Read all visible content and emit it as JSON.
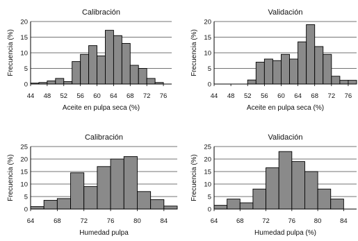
{
  "chart_data": [
    {
      "type": "bar",
      "title": "Calibración",
      "xlabel": "Aceite en pulpa seca (%)",
      "ylabel": "Frecuencia (%)",
      "ylim": [
        0,
        20
      ],
      "xlim": [
        44,
        78
      ],
      "yticks": [
        0,
        5,
        10,
        15,
        20
      ],
      "xticks": [
        44,
        48,
        52,
        56,
        60,
        64,
        68,
        72,
        76
      ],
      "grid": "horizontal",
      "bin_width": 2,
      "bins": [
        44,
        46,
        48,
        50,
        52,
        54,
        56,
        58,
        60,
        62,
        64,
        66,
        68,
        70,
        72,
        74,
        76
      ],
      "values": [
        0.3,
        0.5,
        1.0,
        1.8,
        0.8,
        7.2,
        9.5,
        12.3,
        9.0,
        17.2,
        15.5,
        13.0,
        6.0,
        5.0,
        1.8,
        0.5,
        0.0
      ]
    },
    {
      "type": "bar",
      "title": "Validación",
      "xlabel": "Aceite en pulpa seca (%)",
      "ylabel": "Frecuencia (%)",
      "ylim": [
        0,
        20
      ],
      "xlim": [
        44,
        78
      ],
      "yticks": [
        0,
        5,
        10,
        15,
        20
      ],
      "xticks": [
        44,
        48,
        52,
        56,
        60,
        64,
        68,
        72,
        76
      ],
      "grid": "horizontal",
      "bin_width": 2,
      "bins": [
        44,
        46,
        48,
        50,
        52,
        54,
        56,
        58,
        60,
        62,
        64,
        66,
        68,
        70,
        72,
        74,
        76
      ],
      "values": [
        0,
        0,
        0,
        0,
        1.3,
        7.0,
        8.0,
        7.5,
        9.5,
        8.0,
        13.5,
        19.0,
        12.0,
        9.5,
        2.5,
        1.2,
        1.2
      ]
    },
    {
      "type": "bar",
      "title": "Calibración",
      "xlabel": "Humedad pulpa",
      "ylabel": "Frecuencia (%)",
      "ylim": [
        0,
        25
      ],
      "xlim": [
        64,
        86
      ],
      "yticks": [
        0,
        5,
        10,
        15,
        20,
        25
      ],
      "xticks": [
        64,
        68,
        72,
        76,
        80,
        84
      ],
      "grid": "horizontal",
      "bin_width": 2,
      "bins": [
        64,
        66,
        68,
        70,
        72,
        74,
        76,
        78,
        80,
        82,
        84
      ],
      "values": [
        1.0,
        3.5,
        4.2,
        14.5,
        9.0,
        17.0,
        20.0,
        21.0,
        7.0,
        3.8,
        1.2
      ]
    },
    {
      "type": "bar",
      "title": "Validación",
      "xlabel": "Humedad pulpa (%)",
      "ylabel": "Frecuencia (%)",
      "ylim": [
        0,
        25
      ],
      "xlim": [
        64,
        86
      ],
      "yticks": [
        0,
        5,
        10,
        15,
        20,
        25
      ],
      "xticks": [
        64,
        68,
        72,
        76,
        80,
        84
      ],
      "grid": "horizontal",
      "bin_width": 2,
      "bins": [
        64,
        66,
        68,
        70,
        72,
        74,
        76,
        78,
        80,
        82,
        84
      ],
      "values": [
        1.5,
        4.0,
        2.5,
        8.0,
        16.5,
        23.0,
        19.0,
        15.0,
        8.0,
        4.0,
        0
      ]
    }
  ]
}
